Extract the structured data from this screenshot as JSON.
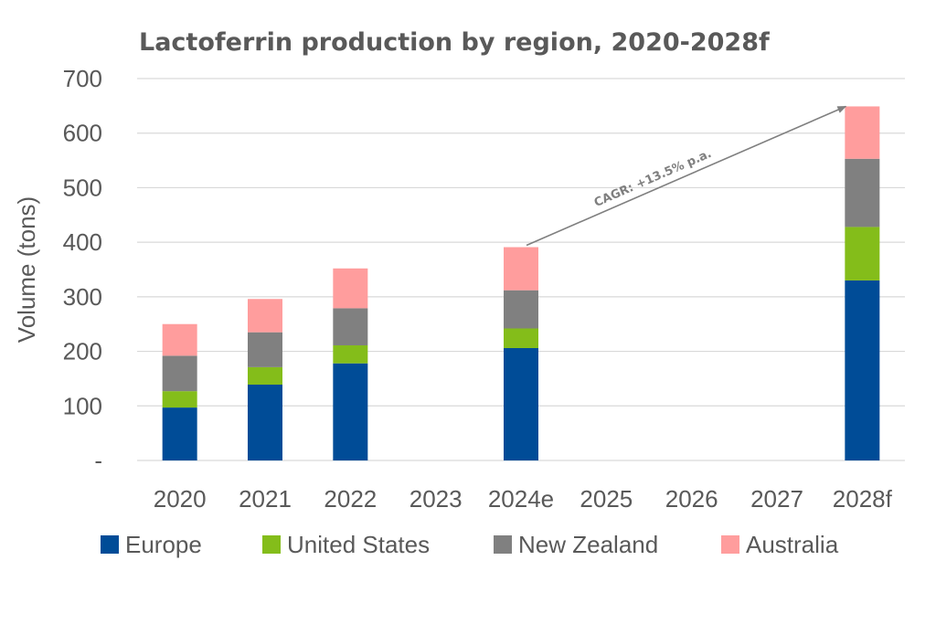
{
  "chart_data": {
    "type": "bar",
    "stacked": true,
    "title": "Lactoferrin production by region, 2020-2028f",
    "xlabel": "",
    "ylabel": "Volume (tons)",
    "ylim": [
      0,
      700
    ],
    "yticks": [
      0,
      100,
      200,
      300,
      400,
      500,
      600,
      700
    ],
    "ytick_labels": [
      "-",
      "100",
      "200",
      "300",
      "400",
      "500",
      "600",
      "700"
    ],
    "grid": true,
    "legend_position": "bottom",
    "categories": [
      "2020",
      "2021",
      "2022",
      "2023",
      "2024e",
      "2025",
      "2026",
      "2027",
      "2028f"
    ],
    "series": [
      {
        "name": "Europe",
        "color": "#004c97",
        "values": [
          97,
          139,
          178,
          null,
          206,
          null,
          null,
          null,
          330
        ]
      },
      {
        "name": "United States",
        "color": "#84bd1a",
        "values": [
          30,
          32,
          33,
          null,
          36,
          null,
          null,
          null,
          98
        ]
      },
      {
        "name": "New Zealand",
        "color": "#808080",
        "values": [
          65,
          64,
          68,
          null,
          70,
          null,
          null,
          null,
          125
        ]
      },
      {
        "name": "Australia",
        "color": "#ff9d9d",
        "values": [
          58,
          61,
          73,
          null,
          79,
          null,
          null,
          null,
          96
        ]
      }
    ],
    "annotation": {
      "text": "CAGR: +13.5% p.a.",
      "from_category": "2024e",
      "to_category": "2028f",
      "color": "#7f7f7f"
    }
  }
}
